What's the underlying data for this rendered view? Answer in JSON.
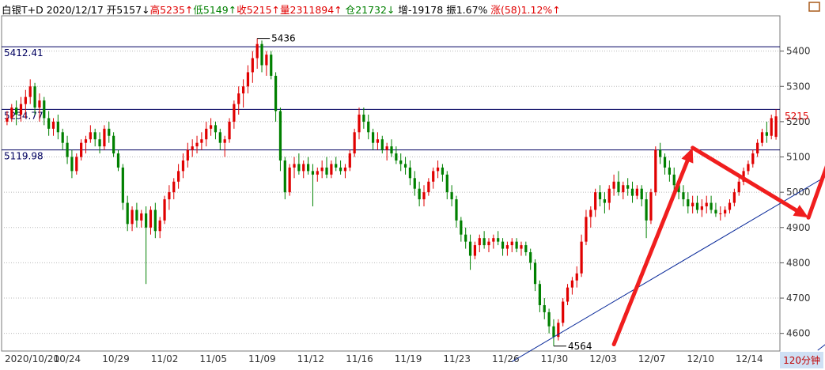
{
  "header": {
    "symbol": "白银T+D",
    "date": "2020/12/17",
    "open_label": "开",
    "open": "5157",
    "open_arrow": "↓",
    "high_label": "高",
    "high": "5235",
    "high_arrow": "↑",
    "low_label": "低",
    "low": "5149",
    "low_arrow": "↑",
    "close_label": "收",
    "close": "5215",
    "close_arrow": "↑",
    "vol_label": "量",
    "vol": "2311894",
    "vol_arrow": "↑",
    "oi_label": "仓",
    "oi": "21732",
    "oi_arrow": "↓",
    "chg_label": "增",
    "chg": "-19178",
    "amp_label": "振",
    "amp": "1.67%",
    "rise_label": "涨",
    "rise": "(58)1.12%",
    "rise_arrow": "↑"
  },
  "timeframe": "120分钟",
  "colors": {
    "up": "#e00000",
    "down": "#008000",
    "grid": "#b8b8b8",
    "level": "#000060",
    "channel": "#0a2a9a",
    "arrow": "#f01e1e",
    "axis_text": "#333333",
    "last_price": "#e00000"
  },
  "icons": {
    "corner_button": "square-button-icon"
  },
  "chart_data": {
    "type": "candlestick",
    "ylim": [
      4550,
      5500
    ],
    "y_ticks": [
      4600,
      4700,
      4800,
      4900,
      5000,
      5100,
      5200,
      5300,
      5400
    ],
    "x_labels": [
      "2020/10/20",
      "10/24",
      "10/29",
      "11/02",
      "11/05",
      "11/09",
      "11/12",
      "11/16",
      "11/19",
      "11/23",
      "11/26",
      "11/30",
      "12/03",
      "12/07",
      "12/10",
      "12/14"
    ],
    "levels": [
      {
        "label": "5412.41",
        "value": 5412.41
      },
      {
        "label": "5234.77",
        "value": 5234.77
      },
      {
        "label": "5119.98",
        "value": 5119.98
      }
    ],
    "annotations": [
      {
        "label": "5436",
        "value": 5436
      },
      {
        "label": "4564",
        "value": 4564
      }
    ],
    "last_price": {
      "label": "5215",
      "value": 5215
    },
    "candles": [
      [
        5200,
        5230,
        5190,
        5210
      ],
      [
        5210,
        5250,
        5200,
        5240
      ],
      [
        5240,
        5260,
        5190,
        5220
      ],
      [
        5220,
        5270,
        5200,
        5250
      ],
      [
        5250,
        5290,
        5210,
        5270
      ],
      [
        5270,
        5320,
        5250,
        5300
      ],
      [
        5300,
        5310,
        5220,
        5240
      ],
      [
        5240,
        5280,
        5200,
        5260
      ],
      [
        5260,
        5270,
        5190,
        5210
      ],
      [
        5210,
        5230,
        5160,
        5180
      ],
      [
        5180,
        5210,
        5160,
        5200
      ],
      [
        5200,
        5220,
        5150,
        5170
      ],
      [
        5170,
        5180,
        5120,
        5140
      ],
      [
        5140,
        5160,
        5080,
        5100
      ],
      [
        5100,
        5120,
        5040,
        5060
      ],
      [
        5060,
        5110,
        5050,
        5100
      ],
      [
        5100,
        5150,
        5090,
        5140
      ],
      [
        5140,
        5160,
        5110,
        5150
      ],
      [
        5150,
        5190,
        5140,
        5170
      ],
      [
        5170,
        5180,
        5130,
        5150
      ],
      [
        5150,
        5170,
        5110,
        5130
      ],
      [
        5130,
        5190,
        5120,
        5180
      ],
      [
        5180,
        5200,
        5140,
        5160
      ],
      [
        5160,
        5170,
        5100,
        5110
      ],
      [
        5110,
        5120,
        5060,
        5070
      ],
      [
        5070,
        5080,
        4950,
        4970
      ],
      [
        4970,
        4990,
        4890,
        4910
      ],
      [
        4910,
        4960,
        4890,
        4950
      ],
      [
        4950,
        4970,
        4900,
        4920
      ],
      [
        4920,
        4950,
        4900,
        4940
      ],
      [
        4940,
        4960,
        4740,
        4900
      ],
      [
        4900,
        4960,
        4880,
        4950
      ],
      [
        4950,
        4970,
        4870,
        4890
      ],
      [
        4890,
        4930,
        4870,
        4920
      ],
      [
        4920,
        4990,
        4910,
        4980
      ],
      [
        4980,
        5020,
        4950,
        5000
      ],
      [
        5000,
        5040,
        4980,
        5030
      ],
      [
        5030,
        5080,
        5010,
        5060
      ],
      [
        5060,
        5110,
        5040,
        5090
      ],
      [
        5090,
        5140,
        5070,
        5120
      ],
      [
        5120,
        5150,
        5100,
        5130
      ],
      [
        5130,
        5160,
        5110,
        5140
      ],
      [
        5140,
        5170,
        5120,
        5150
      ],
      [
        5150,
        5200,
        5130,
        5180
      ],
      [
        5180,
        5210,
        5160,
        5190
      ],
      [
        5190,
        5200,
        5150,
        5170
      ],
      [
        5170,
        5180,
        5120,
        5140
      ],
      [
        5140,
        5160,
        5100,
        5150
      ],
      [
        5150,
        5210,
        5140,
        5200
      ],
      [
        5200,
        5260,
        5180,
        5250
      ],
      [
        5250,
        5300,
        5220,
        5280
      ],
      [
        5280,
        5320,
        5240,
        5300
      ],
      [
        5300,
        5360,
        5280,
        5340
      ],
      [
        5340,
        5400,
        5310,
        5380
      ],
      [
        5380,
        5436,
        5350,
        5420
      ],
      [
        5420,
        5430,
        5340,
        5360
      ],
      [
        5360,
        5400,
        5330,
        5390
      ],
      [
        5390,
        5400,
        5320,
        5330
      ],
      [
        5330,
        5340,
        5200,
        5230
      ],
      [
        5230,
        5240,
        5060,
        5090
      ],
      [
        5090,
        5100,
        4980,
        5000
      ],
      [
        5000,
        5080,
        4990,
        5070
      ],
      [
        5070,
        5100,
        5040,
        5080
      ],
      [
        5080,
        5110,
        5050,
        5060
      ],
      [
        5060,
        5090,
        5040,
        5080
      ],
      [
        5080,
        5100,
        5050,
        5060
      ],
      [
        5060,
        5080,
        4960,
        5050
      ],
      [
        5050,
        5070,
        5030,
        5060
      ],
      [
        5060,
        5090,
        5040,
        5070
      ],
      [
        5070,
        5100,
        5040,
        5050
      ],
      [
        5050,
        5090,
        5040,
        5080
      ],
      [
        5080,
        5100,
        5060,
        5070
      ],
      [
        5070,
        5090,
        5050,
        5060
      ],
      [
        5060,
        5080,
        5040,
        5070
      ],
      [
        5070,
        5120,
        5060,
        5110
      ],
      [
        5110,
        5180,
        5100,
        5170
      ],
      [
        5170,
        5240,
        5150,
        5220
      ],
      [
        5220,
        5240,
        5180,
        5200
      ],
      [
        5200,
        5220,
        5150,
        5170
      ],
      [
        5170,
        5180,
        5120,
        5140
      ],
      [
        5140,
        5170,
        5120,
        5150
      ],
      [
        5150,
        5160,
        5110,
        5120
      ],
      [
        5120,
        5140,
        5090,
        5130
      ],
      [
        5130,
        5150,
        5100,
        5110
      ],
      [
        5110,
        5130,
        5080,
        5090
      ],
      [
        5090,
        5110,
        5060,
        5080
      ],
      [
        5080,
        5100,
        5050,
        5070
      ],
      [
        5070,
        5090,
        5020,
        5040
      ],
      [
        5040,
        5060,
        4990,
        5010
      ],
      [
        5010,
        5030,
        4960,
        4980
      ],
      [
        4980,
        5020,
        4960,
        5000
      ],
      [
        5000,
        5040,
        4990,
        5030
      ],
      [
        5030,
        5070,
        5010,
        5060
      ],
      [
        5060,
        5090,
        5040,
        5070
      ],
      [
        5070,
        5080,
        5030,
        5050
      ],
      [
        5050,
        5060,
        4980,
        5000
      ],
      [
        5000,
        5020,
        4960,
        4980
      ],
      [
        4980,
        4990,
        4900,
        4920
      ],
      [
        4920,
        4930,
        4860,
        4880
      ],
      [
        4880,
        4900,
        4840,
        4860
      ],
      [
        4860,
        4880,
        4780,
        4820
      ],
      [
        4820,
        4860,
        4810,
        4850
      ],
      [
        4850,
        4880,
        4830,
        4870
      ],
      [
        4870,
        4890,
        4840,
        4850
      ],
      [
        4850,
        4870,
        4830,
        4860
      ],
      [
        4860,
        4880,
        4840,
        4870
      ],
      [
        4870,
        4890,
        4850,
        4860
      ],
      [
        4860,
        4870,
        4820,
        4840
      ],
      [
        4840,
        4860,
        4820,
        4850
      ],
      [
        4850,
        4870,
        4830,
        4860
      ],
      [
        4860,
        4870,
        4830,
        4840
      ],
      [
        4840,
        4860,
        4820,
        4850
      ],
      [
        4850,
        4860,
        4820,
        4830
      ],
      [
        4830,
        4840,
        4780,
        4800
      ],
      [
        4800,
        4810,
        4720,
        4740
      ],
      [
        4740,
        4750,
        4660,
        4680
      ],
      [
        4680,
        4700,
        4640,
        4660
      ],
      [
        4660,
        4670,
        4600,
        4620
      ],
      [
        4620,
        4640,
        4564,
        4590
      ],
      [
        4590,
        4640,
        4580,
        4630
      ],
      [
        4630,
        4700,
        4620,
        4690
      ],
      [
        4690,
        4740,
        4680,
        4730
      ],
      [
        4730,
        4760,
        4710,
        4750
      ],
      [
        4750,
        4790,
        4730,
        4770
      ],
      [
        4770,
        4880,
        4760,
        4860
      ],
      [
        4860,
        4950,
        4850,
        4930
      ],
      [
        4930,
        4960,
        4900,
        4950
      ],
      [
        4950,
        5010,
        4930,
        5000
      ],
      [
        5000,
        5020,
        4960,
        4980
      ],
      [
        4980,
        5000,
        4940,
        4970
      ],
      [
        4970,
        5020,
        4950,
        5010
      ],
      [
        5010,
        5050,
        4990,
        5030
      ],
      [
        5030,
        5060,
        4990,
        5000
      ],
      [
        5000,
        5030,
        4980,
        5020
      ],
      [
        5020,
        5040,
        4990,
        5010
      ],
      [
        5010,
        5030,
        4970,
        4990
      ],
      [
        4990,
        5020,
        4980,
        5010
      ],
      [
        5010,
        5020,
        4960,
        4980
      ],
      [
        4980,
        5000,
        4870,
        4920
      ],
      [
        4920,
        5010,
        4910,
        5000
      ],
      [
        5000,
        5130,
        4990,
        5120
      ],
      [
        5120,
        5140,
        5080,
        5100
      ],
      [
        5100,
        5110,
        5050,
        5070
      ],
      [
        5070,
        5090,
        5030,
        5050
      ],
      [
        5050,
        5070,
        5000,
        5020
      ],
      [
        5020,
        5040,
        4980,
        5000
      ],
      [
        5000,
        5020,
        4960,
        4980
      ],
      [
        4980,
        5000,
        4940,
        4960
      ],
      [
        4960,
        4990,
        4940,
        4970
      ],
      [
        4970,
        4990,
        4940,
        4950
      ],
      [
        4950,
        4980,
        4930,
        4960
      ],
      [
        4960,
        4990,
        4940,
        4970
      ],
      [
        4970,
        4990,
        4940,
        4950
      ],
      [
        4950,
        4970,
        4930,
        4940
      ],
      [
        4940,
        4960,
        4920,
        4940
      ],
      [
        4940,
        4960,
        4930,
        4950
      ],
      [
        4950,
        4980,
        4940,
        4970
      ],
      [
        4970,
        5010,
        4960,
        5000
      ],
      [
        5000,
        5040,
        4990,
        5030
      ],
      [
        5030,
        5070,
        5020,
        5060
      ],
      [
        5060,
        5090,
        5050,
        5080
      ],
      [
        5080,
        5120,
        5070,
        5110
      ],
      [
        5110,
        5150,
        5100,
        5140
      ],
      [
        5140,
        5180,
        5130,
        5170
      ],
      [
        5170,
        5200,
        5140,
        5160
      ],
      [
        5160,
        5220,
        5150,
        5210
      ],
      [
        5157,
        5235,
        5149,
        5215
      ]
    ],
    "channel_lines": [
      {
        "from": [
          109,
          4520
        ],
        "to": [
          222,
          5395
        ]
      },
      {
        "from": [
          175,
          4552
        ],
        "to": [
          222,
          5025
        ]
      }
    ],
    "arrows": [
      {
        "from": [
          131,
          4569
        ],
        "to": [
          148,
          5126
        ]
      },
      {
        "from": [
          148,
          5126
        ],
        "to": [
          173,
          4928
        ]
      },
      {
        "from": [
          173,
          4928
        ],
        "to": [
          185,
          5370
        ]
      }
    ]
  }
}
